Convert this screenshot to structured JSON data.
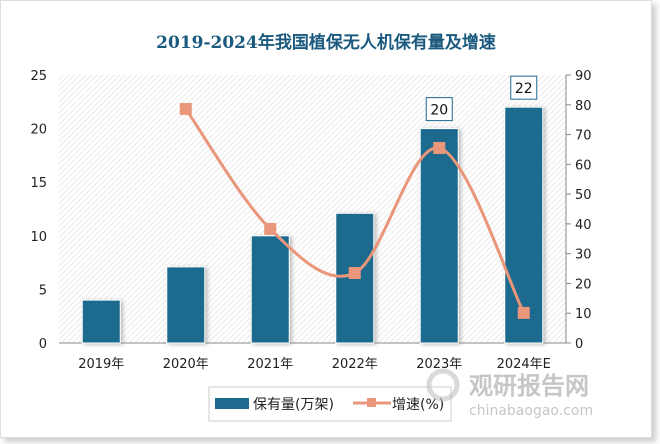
{
  "chart_data": {
    "type": "bar",
    "title": "2019-2024年我国植保无人机保有量及增速",
    "categories": [
      "2019年",
      "2020年",
      "2021年",
      "2022年",
      "2023年",
      "2024年E"
    ],
    "series": [
      {
        "name": "保有量(万架)",
        "type": "bar",
        "axis": "left",
        "color": "#1e6a8e",
        "values": [
          4,
          7.1,
          10,
          12.1,
          20,
          22
        ]
      },
      {
        "name": "增速(%)",
        "type": "line",
        "axis": "right",
        "color": "#e9967a",
        "values": [
          null,
          78.6,
          38.3,
          23.5,
          65.5,
          10.1
        ]
      }
    ],
    "data_labels": [
      {
        "category": "2023年",
        "text": "20"
      },
      {
        "category": "2024年E",
        "text": "22"
      }
    ],
    "left_axis": {
      "ylim": [
        0,
        25
      ],
      "ticks": [
        "0",
        "5",
        "10",
        "15",
        "20",
        "25"
      ]
    },
    "right_axis": {
      "ylim": [
        0,
        90
      ],
      "ticks": [
        "0",
        "10",
        "20",
        "30",
        "40",
        "50",
        "60",
        "70",
        "80",
        "90"
      ]
    },
    "grid": false,
    "legend": "bottom"
  },
  "watermark": {
    "cn": "观研报告网",
    "url": "chinabaogao.com"
  }
}
